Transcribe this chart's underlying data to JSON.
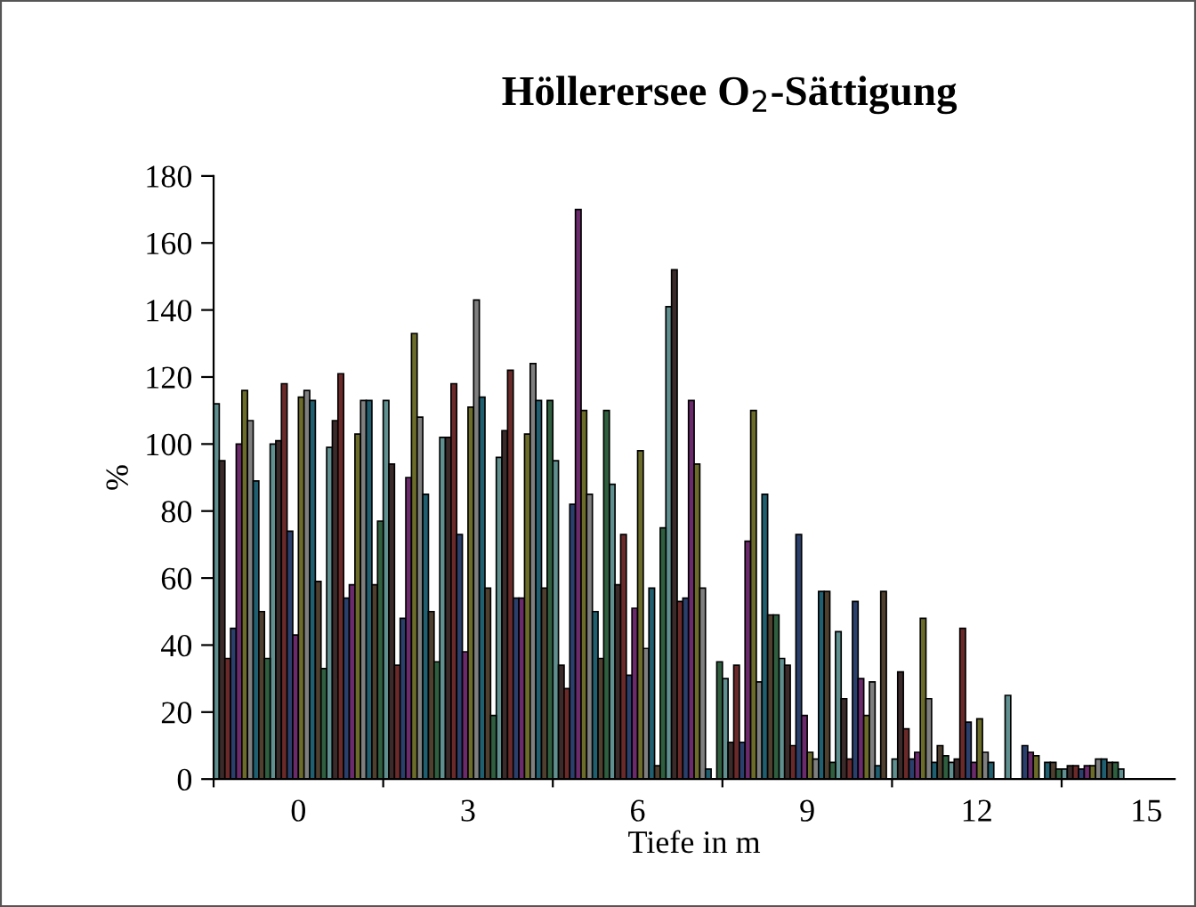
{
  "chart_data": {
    "type": "bar",
    "title": "Höllerersee O$_{2}$-Sättigung",
    "xlabel": "Tiefe in m",
    "ylabel": "%",
    "categories": [
      null,
      "0",
      null,
      null,
      "3",
      null,
      null,
      "6",
      null,
      null,
      "9",
      null,
      null,
      "12",
      null,
      null,
      "15"
    ],
    "ylim": [
      0,
      180
    ],
    "yticks": [
      0,
      20,
      40,
      60,
      80,
      100,
      120,
      140,
      160,
      180
    ],
    "grid": false,
    "series": [
      {
        "color": "#5f8f8f",
        "values": [
          112,
          100,
          99,
          113,
          102,
          96,
          95,
          88,
          141,
          30,
          36,
          44,
          6,
          5,
          25,
          3,
          3
        ]
      },
      {
        "color": "#3b2a2a",
        "values": [
          95,
          101,
          107,
          94,
          102,
          104,
          34,
          58,
          152,
          11,
          34,
          24,
          32,
          6,
          null,
          4,
          null
        ]
      },
      {
        "color": "#6b2a2a",
        "values": [
          36,
          118,
          121,
          34,
          118,
          122,
          27,
          73,
          53,
          34,
          10,
          6,
          15,
          45,
          null,
          4,
          null
        ]
      },
      {
        "color": "#2a3f6b",
        "values": [
          45,
          74,
          54,
          48,
          73,
          54,
          82,
          31,
          54,
          11,
          73,
          53,
          6,
          17,
          10,
          3,
          null
        ]
      },
      {
        "color": "#6b2a6b",
        "values": [
          100,
          43,
          58,
          90,
          38,
          54,
          170,
          51,
          113,
          71,
          19,
          30,
          8,
          5,
          8,
          4,
          null
        ]
      },
      {
        "color": "#6b6b2a",
        "values": [
          116,
          114,
          103,
          133,
          111,
          103,
          110,
          98,
          94,
          110,
          8,
          19,
          48,
          18,
          7,
          4,
          null
        ]
      },
      {
        "color": "#7f7f7f",
        "values": [
          107,
          116,
          113,
          108,
          143,
          124,
          85,
          39,
          57,
          29,
          6,
          29,
          24,
          8,
          null,
          6,
          null
        ]
      },
      {
        "color": "#1f5f6f",
        "values": [
          89,
          113,
          113,
          85,
          114,
          113,
          50,
          57,
          3,
          85,
          56,
          4,
          5,
          5,
          5,
          6,
          null
        ]
      },
      {
        "color": "#4f3f2f",
        "values": [
          50,
          59,
          58,
          50,
          57,
          57,
          36,
          4,
          null,
          49,
          56,
          56,
          10,
          null,
          5,
          5,
          null
        ]
      },
      {
        "color": "#2f5f3f",
        "values": [
          36,
          33,
          77,
          35,
          19,
          113,
          110,
          75,
          35,
          49,
          5,
          null,
          7,
          null,
          3,
          5,
          null
        ]
      }
    ]
  }
}
